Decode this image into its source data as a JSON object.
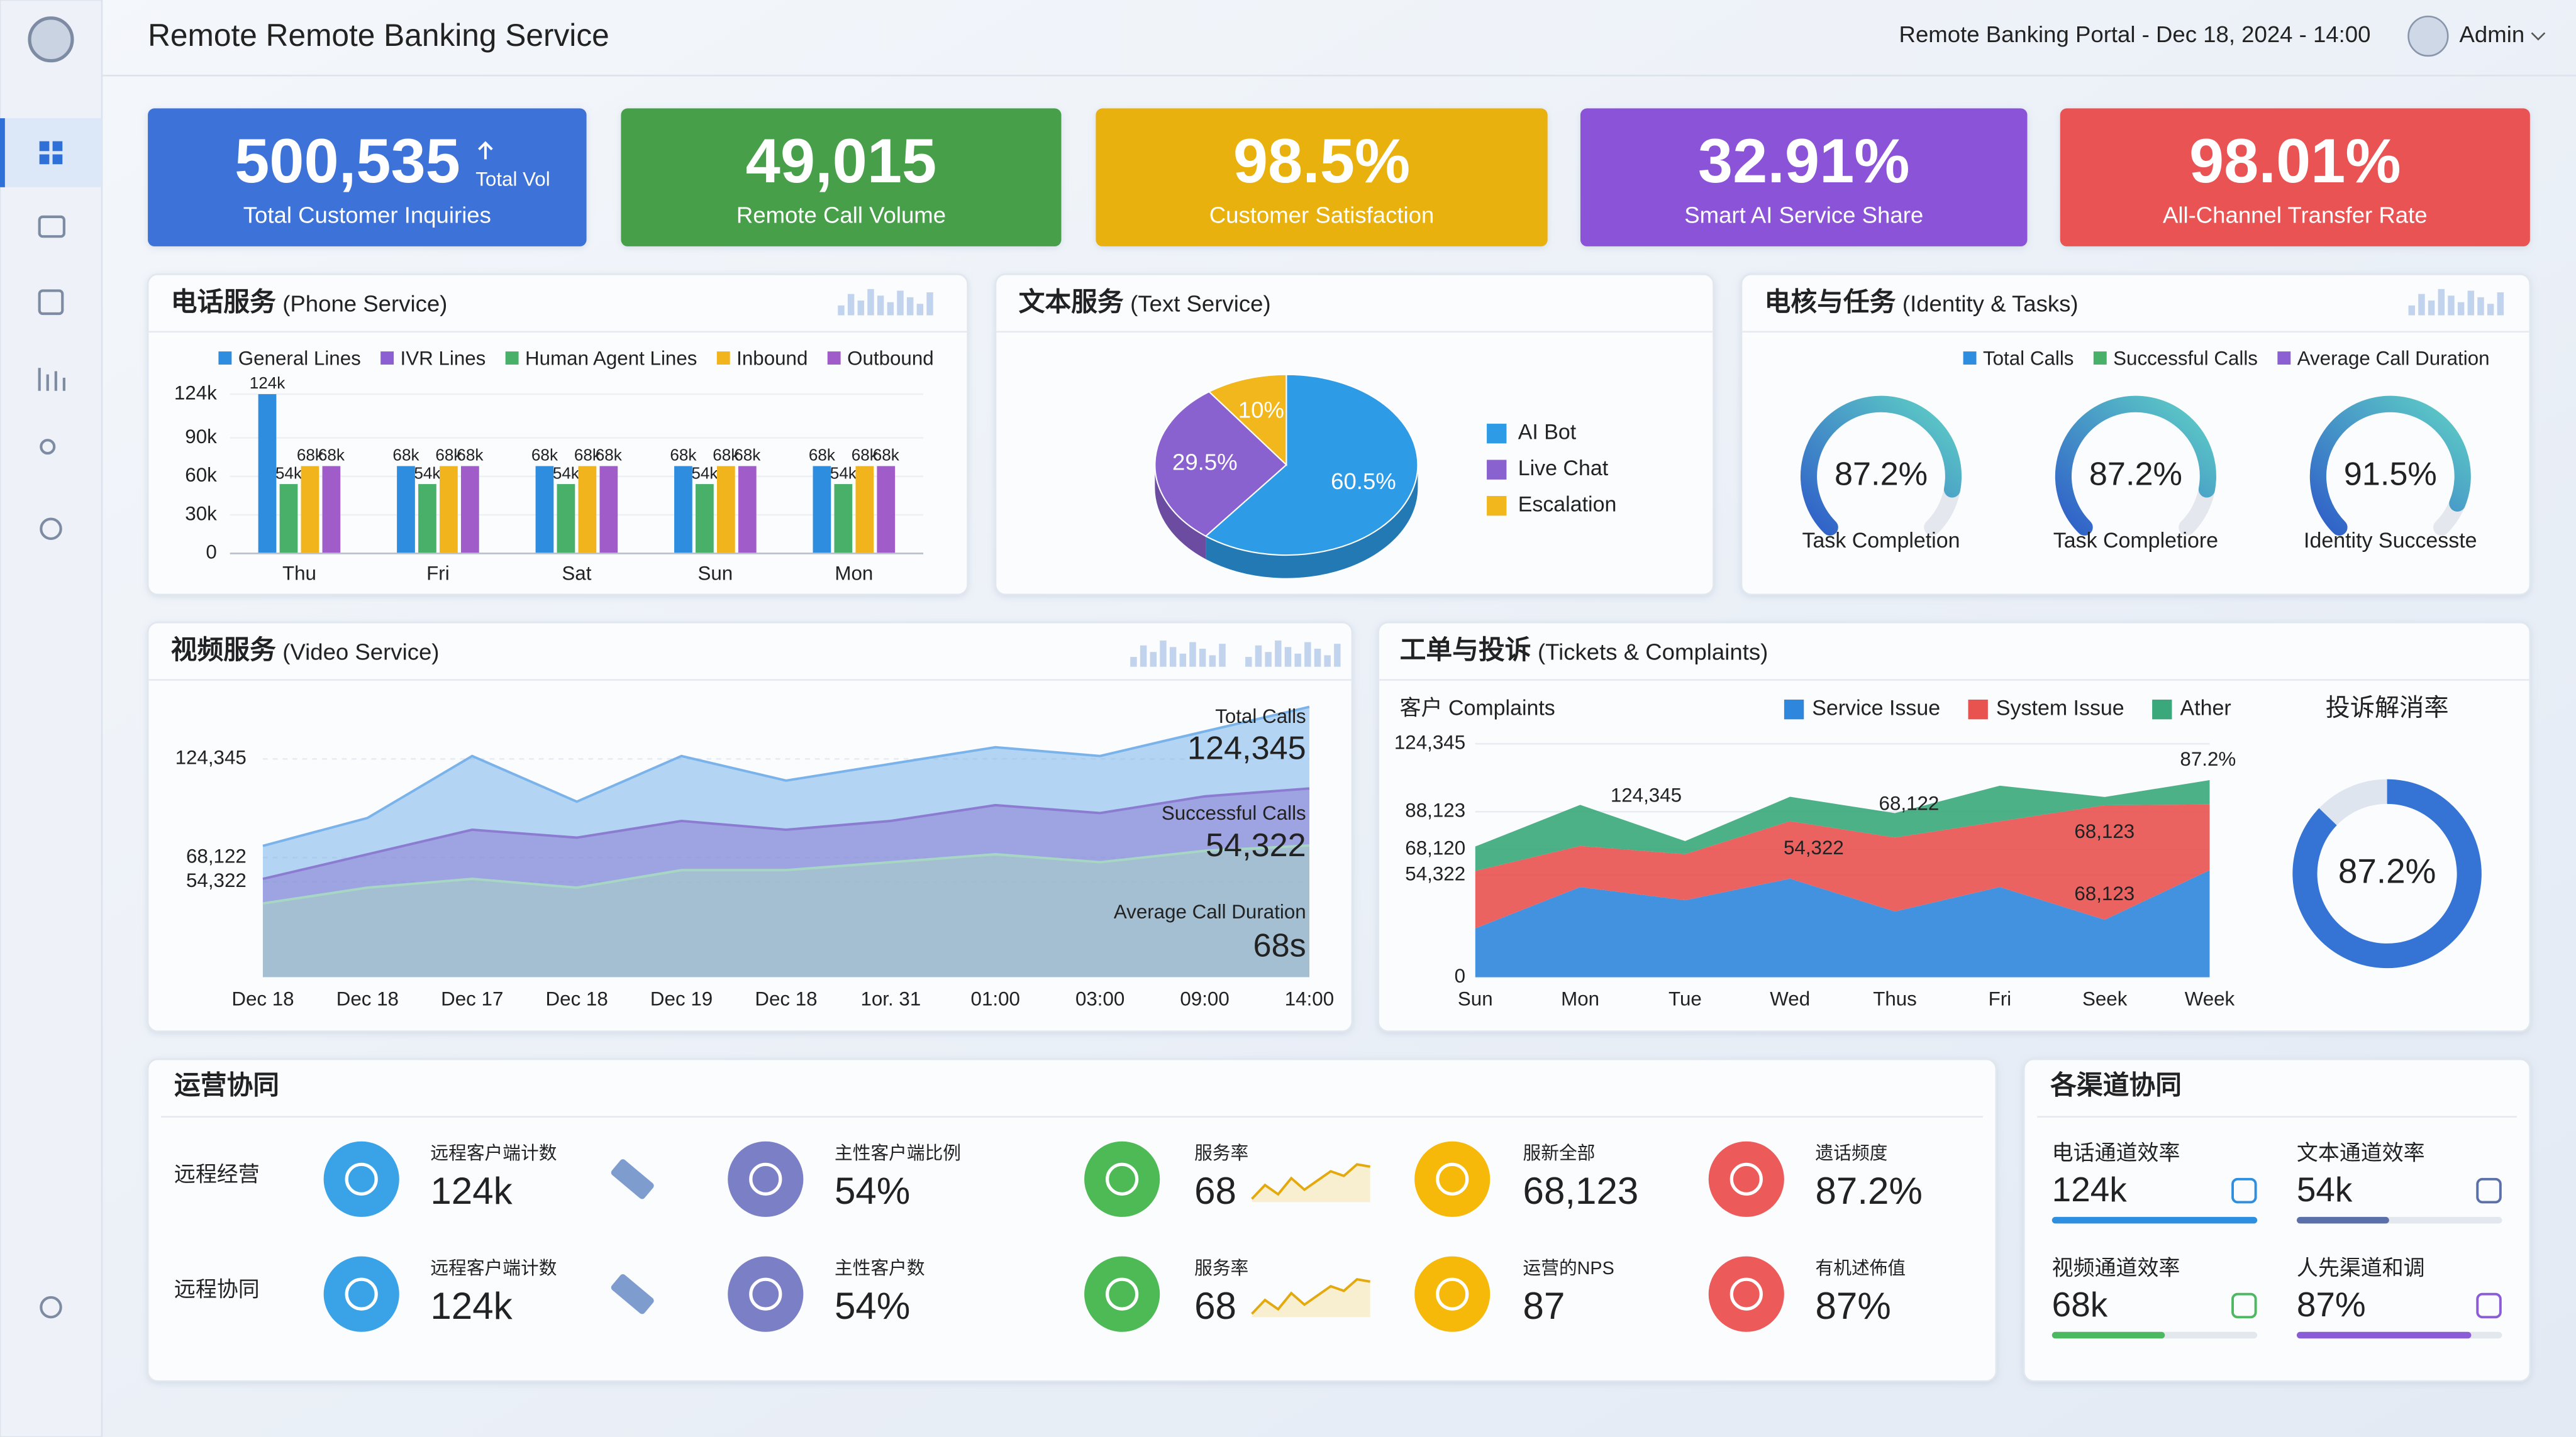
{
  "header": {
    "title": "Remote Remote Banking Service",
    "portal": "Remote Banking Portal - Dec 18, 2024 - 14:00",
    "user": "Admin"
  },
  "kpis": [
    {
      "value": "500,535",
      "unit": "Total Vol",
      "label": "Total Customer Inquiries",
      "color": "#3d72d9"
    },
    {
      "value": "49,015",
      "label": "Remote Call Volume",
      "color": "#46a04a"
    },
    {
      "value": "98.5%",
      "label": "Customer Satisfaction",
      "color": "#e9b10f"
    },
    {
      "value": "32.91%",
      "label": "Smart AI Service Share",
      "color": "#8b52d8"
    },
    {
      "value": "98.01%",
      "label": "All-Channel Transfer Rate",
      "color": "#ea5252"
    }
  ],
  "phone": {
    "type": "bar",
    "title": "电话服务",
    "title_en": "(Phone Service)",
    "categories": [
      "Thu",
      "Fri",
      "Sat",
      "Sun",
      "Mon"
    ],
    "series": [
      {
        "name": "General Lines",
        "color": "#2f8de0",
        "values": [
          124000,
          68000,
          68000,
          68000,
          68000
        ],
        "value_labels": [
          "124k",
          "68k",
          "68k",
          "68k",
          "68k"
        ]
      },
      {
        "name": "IVR Lines",
        "color": "#8c5fd3",
        "values": [
          null,
          null,
          null,
          null,
          null
        ]
      },
      {
        "name": "Human Agent Lines",
        "color": "#49b06a",
        "values": [
          54000,
          54000,
          54000,
          54000,
          54000
        ],
        "value_labels": [
          "54k",
          "54k",
          "54k",
          "54k",
          "54k"
        ]
      },
      {
        "name": "Inbound",
        "color": "#f2b41c",
        "values": [
          68000,
          68000,
          68000,
          68000,
          68000
        ],
        "value_labels": [
          "68k",
          "68k",
          "68k",
          "68k",
          "68k"
        ]
      },
      {
        "name": "Outbound",
        "color": "#a05cc8",
        "values": [
          68000,
          68000,
          68000,
          68000,
          68000
        ],
        "value_labels": [
          "68k",
          "68k",
          "68k",
          "68k",
          "68k"
        ]
      }
    ],
    "ylim": [
      0,
      124000
    ],
    "yticks": [
      0,
      {
        "value": 30000,
        "label": "30k"
      },
      {
        "value": 60000,
        "label": "60k"
      },
      {
        "value": 90000,
        "label": "90k"
      },
      {
        "value": 124000,
        "label": "124k"
      }
    ]
  },
  "text_service": {
    "type": "pie",
    "title": "文本服务",
    "title_en": "(Text Service)",
    "categories": [
      "AI Bot",
      "Live Chat",
      "Escalation"
    ],
    "values": [
      60.5,
      29.5,
      10
    ],
    "value_labels": [
      "60.5%",
      "29.5%",
      "10%"
    ],
    "colors": [
      "#2e9be6",
      "#8a62cf",
      "#f1b71c"
    ]
  },
  "identity": {
    "type": "gauge",
    "title": "电核与任务",
    "title_en": "(Identity & Tasks)",
    "legend": [
      {
        "name": "Total Calls",
        "color": "#2f8de0"
      },
      {
        "name": "Successful Calls",
        "color": "#49b06a"
      },
      {
        "name": "Average Call Duration",
        "color": "#8c5fd3"
      }
    ],
    "categories": [
      "Task Completion",
      "Task Completiore",
      "Identity Successte"
    ],
    "values": [
      87.2,
      87.2,
      91.5
    ],
    "value_labels": [
      "87.2%",
      "87.2%",
      "91.5%"
    ],
    "ylim": [
      0,
      100
    ]
  },
  "video": {
    "type": "area",
    "title": "视频服务",
    "title_en": "(Video Service)",
    "categories": [
      "Dec 18",
      "Dec 18",
      "Dec 17",
      "Dec 18",
      "Dec 19",
      "Dec 18",
      "1or. 31",
      "01:00",
      "03:00",
      "09:00",
      "14:00"
    ],
    "series": [
      {
        "name": "Total Calls",
        "color": "#7ab3ea",
        "annotation": "124,345",
        "values": [
          74800,
          90700,
          126000,
          100000,
          126000,
          112000,
          121500,
          131000,
          126000,
          140000,
          154000
        ]
      },
      {
        "name": "Successful Calls",
        "color": "#8b7cd2",
        "annotation": "54,322",
        "values": [
          56000,
          70000,
          84000,
          79500,
          89000,
          84000,
          89000,
          98000,
          93500,
          103000,
          107500
        ]
      },
      {
        "name": "Average Call Duration",
        "color": "#a7d6c4",
        "annotation": "68s",
        "values": [
          42000,
          51000,
          56000,
          51000,
          61000,
          61000,
          65500,
          70000,
          65500,
          72000,
          75000
        ]
      }
    ],
    "ylim": [
      0,
      160000
    ],
    "yticks": [
      {
        "value": 124345,
        "label": "124,345"
      },
      {
        "value": 54322,
        "label": "54,322"
      },
      {
        "value": 68122,
        "label": "68,122"
      }
    ]
  },
  "tickets": {
    "type": "stacked_area",
    "title": "工单与投诉",
    "title_en": "(Tickets & Complaints)",
    "subtitle": "客户 Complaints",
    "categories": [
      "Sun",
      "Mon",
      "Tue",
      "Wed",
      "Thus",
      "Fri",
      "Seek",
      "Week"
    ],
    "series": [
      {
        "name": "Service Issue",
        "color": "#2f86dd",
        "values": [
          26000,
          48000,
          41000,
          52500,
          35000,
          48000,
          30600,
          57000
        ]
      },
      {
        "name": "System Issue",
        "color": "#e8524f",
        "values": [
          30600,
          21900,
          24500,
          30600,
          39400,
          35000,
          61000,
          35000
        ]
      },
      {
        "name": "Ather",
        "color": "#3aa87a",
        "values": [
          13000,
          21900,
          7000,
          13000,
          13000,
          19000,
          4400,
          13000
        ]
      }
    ],
    "annotations": [
      "124,345",
      "54,322",
      "68,122",
      "68,123",
      "68,123",
      "87.2%"
    ],
    "ylim": [
      0,
      140000
    ],
    "yticks": [
      {
        "value": 124345,
        "label": "124,345"
      },
      {
        "value": 68120,
        "label": "68,120"
      },
      {
        "value": 54322,
        "label": "54,322"
      },
      {
        "value": 88123,
        "label": "88,123"
      },
      0
    ],
    "resolution": {
      "title": "投诉解消率",
      "value": 87.2,
      "value_label": "87.2%",
      "color": "#3574d4"
    }
  },
  "operations": {
    "title": "运营协同",
    "rows": [
      {
        "label": "远程经营",
        "items": [
          {
            "label": "远程客户端计数",
            "value": "124k"
          },
          {
            "label": "主性客户端比例",
            "value": "54%"
          },
          {
            "label": "服务率",
            "value": "68"
          },
          {
            "label": "服新全部",
            "value": "68,123"
          },
          {
            "label": "遗话频度",
            "value": "87.2%"
          }
        ]
      },
      {
        "label": "远程协同",
        "items": [
          {
            "label": "远程客户端计数",
            "value": "124k"
          },
          {
            "label": "主性客户数",
            "value": "54%"
          },
          {
            "label": "服务率",
            "value": "68"
          },
          {
            "label": "运营的NPS",
            "value": "87"
          },
          {
            "label": "有机述佈值",
            "value": "87%"
          }
        ]
      }
    ]
  },
  "channels": {
    "title": "各渠道协同",
    "items": [
      {
        "label": "电话通道效率",
        "value": "124k",
        "progress": 100,
        "color": "#2e8fe0"
      },
      {
        "label": "文本通道效率",
        "value": "54k",
        "progress": 45,
        "color": "#5b6fa8"
      },
      {
        "label": "视频通道效率",
        "value": "68k",
        "progress": 55,
        "color": "#4cb860"
      },
      {
        "label": "人先渠道和调",
        "value": "87%",
        "progress": 85,
        "color": "#8a5cd6"
      }
    ]
  }
}
